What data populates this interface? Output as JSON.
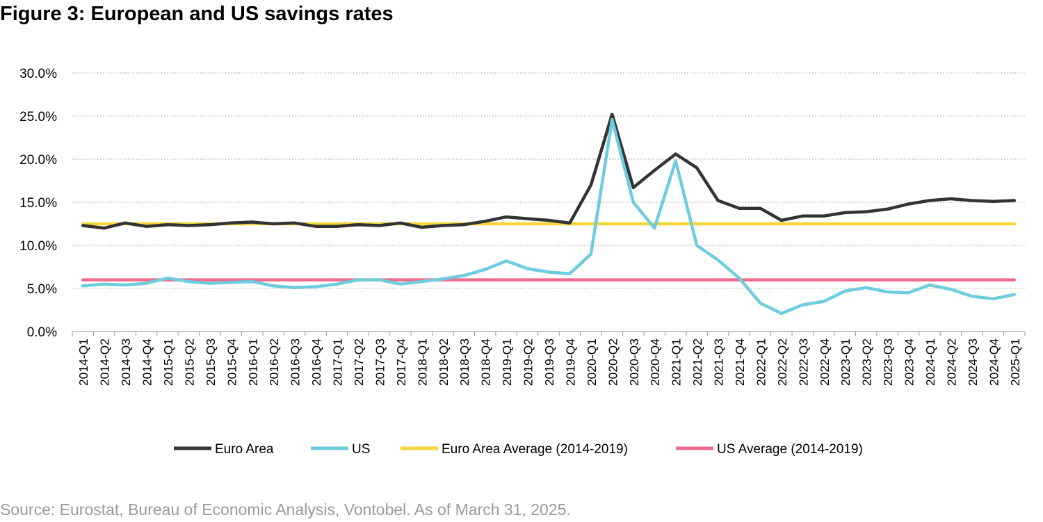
{
  "figure": {
    "title": "Figure 3: European and US savings rates",
    "source": "Source: Eurostat, Bureau of Economic Analysis, Vontobel. As of March 31, 2025."
  },
  "chart_data": {
    "type": "line",
    "title": "Figure 3: European and US savings rates",
    "xlabel": "",
    "ylabel": "",
    "ylim": [
      0,
      30
    ],
    "y_ticks": [
      "0.0%",
      "5.0%",
      "10.0%",
      "15.0%",
      "20.0%",
      "25.0%",
      "30.0%"
    ],
    "y_tick_values": [
      0,
      5,
      10,
      15,
      20,
      25,
      30
    ],
    "grid": "horizontal dotted",
    "legend_position": "bottom",
    "categories": [
      "2014-Q1",
      "2014-Q2",
      "2014-Q3",
      "2014-Q4",
      "2015-Q1",
      "2015-Q2",
      "2015-Q3",
      "2015-Q4",
      "2016-Q1",
      "2016-Q2",
      "2016-Q3",
      "2016-Q4",
      "2017-Q1",
      "2017-Q2",
      "2017-Q3",
      "2017-Q4",
      "2018-Q1",
      "2018-Q2",
      "2018-Q3",
      "2018-Q4",
      "2019-Q1",
      "2019-Q2",
      "2019-Q3",
      "2019-Q4",
      "2020-Q1",
      "2020-Q2",
      "2020-Q3",
      "2020-Q4",
      "2021-Q1",
      "2021-Q2",
      "2021-Q3",
      "2021-Q4",
      "2022-Q1",
      "2022-Q2",
      "2022-Q3",
      "2022-Q4",
      "2023-Q1",
      "2023-Q2",
      "2023-Q3",
      "2023-Q4",
      "2024-Q1",
      "2024-Q2",
      "2024-Q3",
      "2024-Q4",
      "2025-Q1"
    ],
    "series": [
      {
        "name": "Euro Area",
        "color": "#333333",
        "values": [
          12.3,
          12.0,
          12.6,
          12.2,
          12.4,
          12.3,
          12.4,
          12.6,
          12.7,
          12.5,
          12.6,
          12.2,
          12.2,
          12.4,
          12.3,
          12.6,
          12.1,
          12.3,
          12.4,
          12.8,
          13.3,
          13.1,
          12.9,
          12.6,
          17.0,
          25.2,
          16.7,
          18.7,
          20.6,
          19.0,
          15.2,
          14.3,
          14.3,
          12.9,
          13.4,
          13.4,
          13.8,
          13.9,
          14.2,
          14.8,
          15.2,
          15.4,
          15.2,
          15.1,
          15.2
        ]
      },
      {
        "name": "US",
        "color": "#6fcbde",
        "values": [
          5.3,
          5.5,
          5.4,
          5.6,
          6.2,
          5.8,
          5.6,
          5.7,
          5.8,
          5.3,
          5.1,
          5.2,
          5.5,
          6.0,
          6.0,
          5.5,
          5.8,
          6.1,
          6.5,
          7.2,
          8.2,
          7.3,
          6.9,
          6.7,
          9.0,
          24.6,
          15.0,
          12.0,
          19.8,
          10.0,
          8.3,
          6.2,
          3.3,
          2.1,
          3.1,
          3.5,
          4.7,
          5.1,
          4.6,
          4.5,
          5.4,
          4.9,
          4.1,
          3.8,
          4.3
        ]
      },
      {
        "name": "Euro Area Average (2014-2019)",
        "color": "#f5d63a",
        "constant": 12.5
      },
      {
        "name": "US Average (2014-2019)",
        "color": "#ee6a8c",
        "constant": 6.0
      }
    ]
  }
}
